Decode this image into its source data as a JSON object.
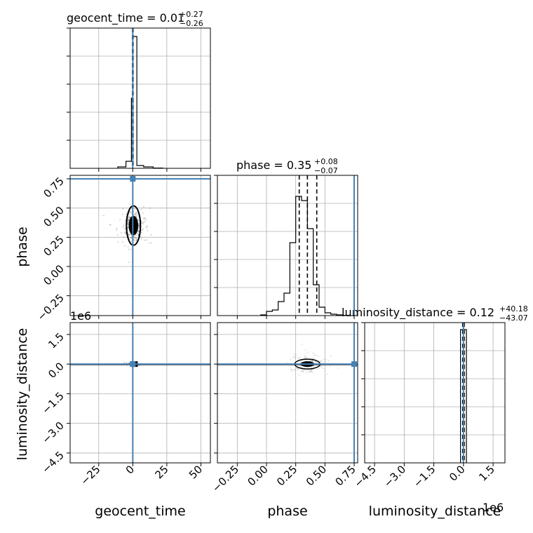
{
  "chart_data": {
    "type": "corner",
    "parameters": [
      "geocent_time",
      "phase",
      "luminosity_distance"
    ],
    "injection_color": "#4682b4",
    "titles": {
      "geocent_time": {
        "prefix": "geocent_time = 0.01",
        "sup": "+0.27",
        "sub": "−0.26"
      },
      "phase": {
        "prefix": "phase = 0.35",
        "sup": "+0.08",
        "sub": "−0.07"
      },
      "luminosity_distance": {
        "prefix": "luminosity_distance = 0.12",
        "sup": "+40.18",
        "sub": "−43.07"
      }
    },
    "axis_labels": {
      "x": [
        "geocent_time",
        "phase",
        "luminosity_distance"
      ],
      "y": [
        "phase",
        "luminosity_distance"
      ]
    },
    "offset_label": "1e6",
    "ticks": {
      "geocent_time": [
        "−25",
        "0",
        "25",
        "50"
      ],
      "phase": [
        "−0.25",
        "0.00",
        "0.25",
        "0.50",
        "0.75"
      ],
      "luminosity_distance": [
        "−4.5",
        "−3.0",
        "−1.5",
        "0.0",
        "1.5"
      ]
    },
    "ranges": {
      "geocent_time": [
        -46,
        57
      ],
      "phase": [
        -0.42,
        0.78
      ],
      "luminosity_distance": [
        -5.0,
        2.1
      ]
    },
    "injection": {
      "geocent_time": 0.0,
      "phase": 0.75,
      "luminosity_distance": 0.0
    },
    "quantiles": {
      "geocent_time": [
        -0.25,
        0.01,
        0.28
      ],
      "phase": [
        0.28,
        0.35,
        0.43
      ],
      "luminosity_distance": [
        -0.04,
        0.0,
        0.04
      ]
    },
    "histograms": {
      "geocent_time": {
        "edges": [
          -11,
          -5,
          -1,
          0,
          3,
          8,
          15,
          22
        ],
        "values": [
          0.01,
          0.05,
          0.5,
          0.94,
          0.02,
          0.01,
          0.002
        ]
      },
      "phase": {
        "edges": [
          -0.05,
          0.0,
          0.05,
          0.1,
          0.15,
          0.2,
          0.25,
          0.3,
          0.35,
          0.4,
          0.45,
          0.5,
          0.55,
          0.6,
          0.65,
          0.7
        ],
        "values": [
          0.005,
          0.03,
          0.04,
          0.1,
          0.16,
          0.52,
          0.85,
          0.82,
          0.62,
          0.22,
          0.06,
          0.02,
          0.01,
          0.005,
          0.002
        ]
      },
      "luminosity_distance": {
        "edges": [
          -0.15,
          0.0,
          0.15
        ],
        "values": [
          0.95,
          0.95
        ]
      }
    },
    "grid": true
  }
}
